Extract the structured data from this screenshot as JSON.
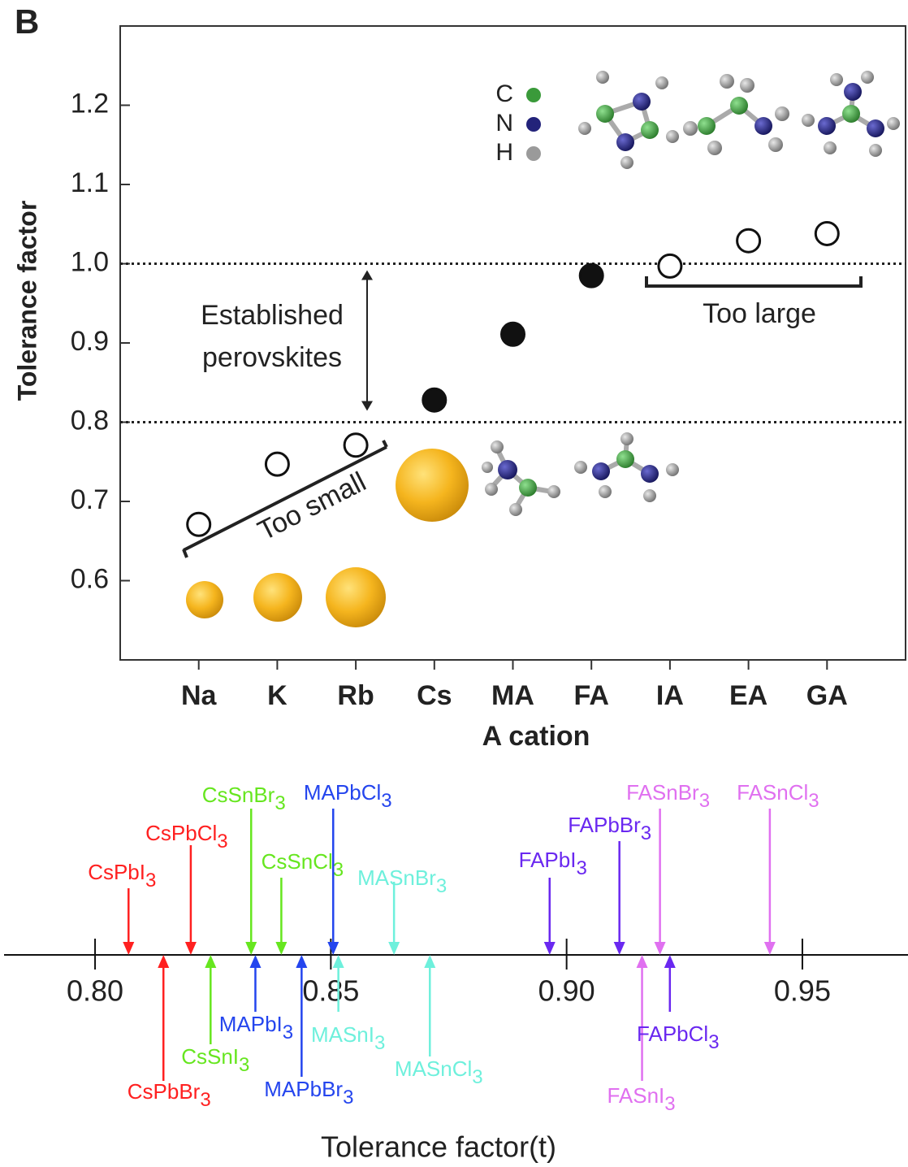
{
  "panel_label": "B",
  "chart_data": [
    {
      "type": "scatter",
      "y_label": "Tolerance factor",
      "x_label": "A cation",
      "categories": [
        "Na",
        "K",
        "Rb",
        "Cs",
        "MA",
        "FA",
        "IA",
        "EA",
        "GA"
      ],
      "values": [
        0.671,
        0.747,
        0.771,
        0.828,
        0.911,
        0.985,
        0.997,
        1.029,
        1.038
      ],
      "filled": [
        false,
        false,
        false,
        true,
        true,
        true,
        false,
        false,
        false
      ],
      "color": "#111111",
      "ylim": [
        0.5,
        1.3
      ],
      "yticks": [
        0.6,
        0.7,
        0.8,
        0.9,
        {
          "value": 1.0,
          "label": "1.0"
        },
        1.1,
        1.2
      ],
      "reference_lines": [
        0.8,
        1.0
      ],
      "annotations": {
        "established": [
          "Established",
          "perovskites"
        ],
        "too_small": "Too small",
        "too_large": "Too large"
      },
      "atom_legend": [
        {
          "label": "C",
          "color": "#3a9a3a"
        },
        {
          "label": "N",
          "color": "#23237a"
        },
        {
          "label": "H",
          "color": "#9a9a9a"
        }
      ]
    },
    {
      "type": "numberline",
      "x_label": "Tolerance factor(t)",
      "xlim": [
        0.7807,
        0.9724
      ],
      "xticks": [
        {
          "value": 0.8,
          "label": "0.80"
        },
        0.85,
        {
          "value": 0.9,
          "label": "0.90"
        },
        0.95
      ],
      "items": [
        {
          "label": "CsPbI3",
          "value": 0.8071,
          "color": "#ff2020",
          "side": "above"
        },
        {
          "label": "CsPbCl3",
          "value": 0.8203,
          "color": "#ff2020",
          "side": "above"
        },
        {
          "label": "CsSnBr3",
          "value": 0.8331,
          "color": "#66e61f",
          "side": "above"
        },
        {
          "label": "CsSnCl3",
          "value": 0.8395,
          "color": "#66e61f",
          "side": "above"
        },
        {
          "label": "MAPbCl3",
          "value": 0.8505,
          "color": "#2445ee",
          "side": "above"
        },
        {
          "label": "MASnBr3",
          "value": 0.8634,
          "color": "#6ef0dc",
          "side": "above"
        },
        {
          "label": "FAPbI3",
          "value": 0.8964,
          "color": "#6a28f0",
          "side": "above"
        },
        {
          "label": "FAPbBr3",
          "value": 0.9112,
          "color": "#6a28f0",
          "side": "above"
        },
        {
          "label": "FASnBr3",
          "value": 0.9198,
          "color": "#e070f0",
          "side": "above"
        },
        {
          "label": "FASnCl3",
          "value": 0.9431,
          "color": "#e070f0",
          "side": "above"
        },
        {
          "label": "CsPbBr3",
          "value": 0.8145,
          "color": "#ff2020",
          "side": "below"
        },
        {
          "label": "CsSnI3",
          "value": 0.8245,
          "color": "#66e61f",
          "side": "below"
        },
        {
          "label": "MAPbI3",
          "value": 0.834,
          "color": "#2445ee",
          "side": "below"
        },
        {
          "label": "MAPbBr3",
          "value": 0.8438,
          "color": "#2445ee",
          "side": "below"
        },
        {
          "label": "MASnI3",
          "value": 0.8516,
          "color": "#6ef0dc",
          "side": "below"
        },
        {
          "label": "MASnCl3",
          "value": 0.871,
          "color": "#6ef0dc",
          "side": "below"
        },
        {
          "label": "FASnI3",
          "value": 0.916,
          "color": "#e070f0",
          "side": "below"
        },
        {
          "label": "FAPbCl3",
          "value": 0.9219,
          "color": "#6a28f0",
          "side": "below"
        }
      ]
    }
  ]
}
